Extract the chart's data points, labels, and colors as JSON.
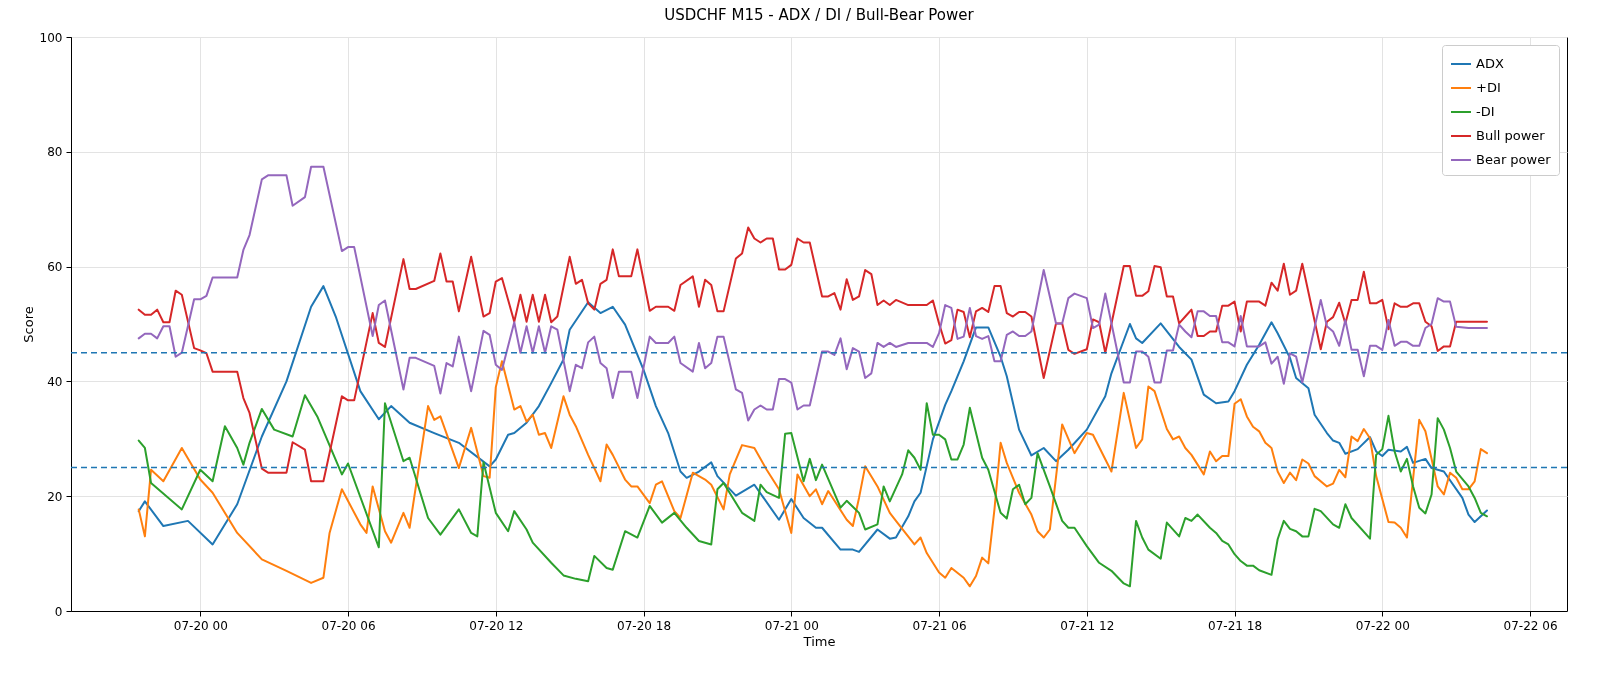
{
  "chart_data": {
    "type": "line",
    "title": "USDCHF M15 - ADX / DI / Bull-Bear Power",
    "xlabel": "Time",
    "ylabel": "Score",
    "xlim": [
      "--07-19T18:45",
      "--07-22T07:30"
    ],
    "xticks": [
      {
        "value": "--07-20T00:00",
        "label": "07-20 00"
      },
      {
        "value": "--07-20T06:00",
        "label": "07-20 06"
      },
      {
        "value": "--07-20T12:00",
        "label": "07-20 12"
      },
      {
        "value": "--07-20T18:00",
        "label": "07-20 18"
      },
      {
        "value": "--07-21T00:00",
        "label": "07-21 00"
      },
      {
        "value": "--07-21T06:00",
        "label": "07-21 06"
      },
      {
        "value": "--07-21T12:00",
        "label": "07-21 12"
      },
      {
        "value": "--07-21T18:00",
        "label": "07-21 18"
      },
      {
        "value": "--07-22T00:00",
        "label": "07-22 00"
      },
      {
        "value": "--07-22T06:00",
        "label": "07-22 06"
      }
    ],
    "ylim": [
      0,
      100
    ],
    "yticks": [
      0,
      20,
      40,
      60,
      80,
      100
    ],
    "grid": true,
    "legend": "top right",
    "line_style": "solid",
    "ref_lines": [
      {
        "axis": "y",
        "value": 45,
        "color": "#1f77b4",
        "line_style": "dashed"
      },
      {
        "axis": "y",
        "value": 25,
        "color": "#1f77b4",
        "line_style": "dashed"
      }
    ],
    "x": [
      "--07-19T21:30",
      "--07-19T21:45",
      "--07-19T22:00",
      "--07-19T22:15",
      "--07-19T22:30",
      "--07-19T22:45",
      "--07-19T23:00",
      "--07-19T23:15",
      "--07-19T23:45",
      "--07-20T00:00",
      "--07-20T00:15",
      "--07-20T00:30",
      "--07-20T01:30",
      "--07-20T01:45",
      "--07-20T02:00",
      "--07-20T02:30",
      "--07-20T02:45",
      "--07-20T03:30",
      "--07-20T03:45",
      "--07-20T04:15",
      "--07-20T04:30",
      "--07-20T05:00",
      "--07-20T05:45",
      "--07-20T06:00",
      "--07-20T06:15",
      "--07-20T07:00",
      "--07-20T07:15",
      "--07-20T07:30",
      "--07-20T08:15",
      "--07-20T08:30",
      "--07-20T08:45",
      "--07-20T09:30",
      "--07-20T09:45",
      "--07-20T10:00",
      "--07-20T10:15",
      "--07-20T10:30",
      "--07-20T11:00",
      "--07-20T11:30",
      "--07-20T11:45",
      "--07-20T12:00",
      "--07-20T12:15",
      "--07-20T12:45",
      "--07-20T13:00",
      "--07-20T13:15",
      "--07-20T13:30",
      "--07-20T13:45",
      "--07-20T14:00",
      "--07-20T14:15",
      "--07-20T14:30",
      "--07-20T15:00",
      "--07-20T15:15",
      "--07-20T15:30",
      "--07-20T15:45",
      "--07-20T16:00",
      "--07-20T16:15",
      "--07-20T16:30",
      "--07-20T16:45",
      "--07-20T17:00",
      "--07-20T17:30",
      "--07-20T17:45",
      "--07-20T18:15",
      "--07-20T18:30",
      "--07-20T19:00",
      "--07-20T19:15",
      "--07-20T19:30",
      "--07-20T20:00",
      "--07-20T20:15",
      "--07-20T20:30",
      "--07-20T20:45",
      "--07-20T21:00",
      "--07-20T21:15",
      "--07-20T21:45",
      "--07-20T22:00",
      "--07-20T22:15",
      "--07-20T22:30",
      "--07-20T22:45",
      "--07-20T23:00",
      "--07-20T23:15",
      "--07-20T23:30",
      "--07-20T23:45",
      "--07-21T00:00",
      "--07-21T00:15",
      "--07-21T00:30",
      "--07-21T00:45",
      "--07-21T01:15",
      "--07-21T01:30",
      "--07-21T01:45",
      "--07-21T02:00",
      "--07-21T02:15",
      "--07-21T02:30",
      "--07-21T02:45",
      "--07-21T03:00",
      "--07-21T03:15",
      "--07-21T03:30",
      "--07-21T03:45",
      "--07-21T04:00",
      "--07-21T04:15",
      "--07-21T04:45",
      "--07-21T05:30",
      "--07-21T05:45",
      "--07-21T06:00",
      "--07-21T06:15",
      "--07-21T06:30",
      "--07-21T06:45",
      "--07-21T07:00",
      "--07-21T07:15",
      "--07-21T07:30",
      "--07-21T07:45",
      "--07-21T08:00",
      "--07-21T08:15",
      "--07-21T08:30",
      "--07-21T08:45",
      "--07-21T09:00",
      "--07-21T09:15",
      "--07-21T09:30",
      "--07-21T09:45",
      "--07-21T10:15",
      "--07-21T10:45",
      "--07-21T11:00",
      "--07-21T11:15",
      "--07-21T11:30",
      "--07-21T12:00",
      "--07-21T12:15",
      "--07-21T12:30",
      "--07-21T12:45",
      "--07-21T13:30",
      "--07-21T13:45",
      "--07-21T14:00",
      "--07-21T14:15",
      "--07-21T14:30",
      "--07-21T14:45",
      "--07-21T15:00",
      "--07-21T15:15",
      "--07-21T15:30",
      "--07-21T15:45",
      "--07-21T16:00",
      "--07-21T16:15",
      "--07-21T16:30",
      "--07-21T16:45",
      "--07-21T17:00",
      "--07-21T17:15",
      "--07-21T17:30",
      "--07-21T17:45",
      "--07-21T18:00",
      "--07-21T18:15",
      "--07-21T18:30",
      "--07-21T19:00",
      "--07-21T19:15",
      "--07-21T19:30",
      "--07-21T19:45",
      "--07-21T20:00",
      "--07-21T20:15",
      "--07-21T20:30",
      "--07-21T20:45",
      "--07-21T21:30",
      "--07-21T21:45",
      "--07-21T22:00",
      "--07-21T22:15",
      "--07-21T22:30",
      "--07-21T22:45",
      "--07-21T23:00",
      "--07-21T23:15",
      "--07-21T23:30",
      "--07-21T23:45",
      "--07-22T00:00",
      "--07-22T00:15",
      "--07-22T00:30",
      "--07-22T00:45",
      "--07-22T01:00",
      "--07-22T01:15",
      "--07-22T01:30",
      "--07-22T01:45",
      "--07-22T02:00",
      "--07-22T02:15",
      "--07-22T02:30",
      "--07-22T02:45",
      "--07-22T03:00",
      "--07-22T03:30",
      "--07-22T04:15"
    ],
    "series": [
      {
        "name": "ADX",
        "color": "#1f77b4",
        "x": [
          "--07-19T21:30",
          "--07-19T21:45",
          "--07-19T22:30",
          "--07-19T23:30",
          "--07-20T00:30",
          "--07-20T01:30",
          "--07-20T02:30",
          "--07-20T03:30",
          "--07-20T04:30",
          "--07-20T05:00",
          "--07-20T05:30",
          "--07-20T06:30",
          "--07-20T07:15",
          "--07-20T07:45",
          "--07-20T08:30",
          "--07-20T09:30",
          "--07-20T10:30",
          "--07-20T11:45",
          "--07-20T12:00",
          "--07-20T12:30",
          "--07-20T12:45",
          "--07-20T13:15",
          "--07-20T13:45",
          "--07-20T14:15",
          "--07-20T14:45",
          "--07-20T15:00",
          "--07-20T15:45",
          "--07-20T16:15",
          "--07-20T16:45",
          "--07-20T17:15",
          "--07-20T18:00",
          "--07-20T18:30",
          "--07-20T19:00",
          "--07-20T19:30",
          "--07-20T19:45",
          "--07-20T20:15",
          "--07-20T20:45",
          "--07-20T21:00",
          "--07-20T21:45",
          "--07-20T22:30",
          "--07-20T23:30",
          "--07-21T00:00",
          "--07-21T00:30",
          "--07-21T01:00",
          "--07-21T01:15",
          "--07-21T02:00",
          "--07-21T02:30",
          "--07-21T02:45",
          "--07-21T03:30",
          "--07-21T04:00",
          "--07-21T04:15",
          "--07-21T04:45",
          "--07-21T05:00",
          "--07-21T05:15",
          "--07-21T05:45",
          "--07-21T06:15",
          "--07-21T06:30",
          "--07-21T07:00",
          "--07-21T07:30",
          "--07-21T08:00",
          "--07-21T08:30",
          "--07-21T08:45",
          "--07-21T09:15",
          "--07-21T09:45",
          "--07-21T10:15",
          "--07-21T10:45",
          "--07-21T11:15",
          "--07-21T12:00",
          "--07-21T12:45",
          "--07-21T13:00",
          "--07-21T13:45",
          "--07-21T14:00",
          "--07-21T14:15",
          "--07-21T15:00",
          "--07-21T15:45",
          "--07-21T16:15",
          "--07-21T16:45",
          "--07-21T17:15",
          "--07-21T17:45",
          "--07-21T18:00",
          "--07-21T18:30",
          "--07-21T19:00",
          "--07-21T19:30",
          "--07-21T19:45",
          "--07-21T20:15",
          "--07-21T20:30",
          "--07-21T21:00",
          "--07-21T21:15",
          "--07-21T21:45",
          "--07-21T22:00",
          "--07-21T22:15",
          "--07-21T22:30",
          "--07-21T23:00",
          "--07-21T23:30",
          "--07-21T23:45",
          "--07-22T00:00",
          "--07-22T00:15",
          "--07-22T00:45",
          "--07-22T01:00",
          "--07-22T01:15",
          "--07-22T01:45",
          "--07-22T02:00",
          "--07-22T02:30",
          "--07-22T03:15",
          "--07-22T03:30",
          "--07-22T03:45",
          "--07-22T04:15"
        ],
        "values": [
          17.4,
          19.1,
          14.8,
          15.7,
          11.6,
          18.6,
          30.4,
          40,
          53,
          56.6,
          51.3,
          38.3,
          33.4,
          35.7,
          32.8,
          31,
          29.3,
          25.2,
          26.4,
          30.7,
          31,
          32.8,
          35.7,
          39.7,
          43.8,
          49,
          53.8,
          51.9,
          53,
          49.9,
          42,
          35.7,
          31,
          24.3,
          23.2,
          24.3,
          25.9,
          23.5,
          20.1,
          22,
          15.9,
          19.5,
          16.2,
          14.5,
          14.5,
          10.7,
          10.7,
          10.3,
          14.2,
          12.6,
          12.8,
          16.5,
          19.1,
          20.6,
          29.9,
          35.9,
          38.3,
          43.5,
          49.4,
          49.4,
          44.3,
          40.9,
          31.6,
          27.1,
          28.4,
          26.1,
          28.1,
          31.6,
          37.4,
          41.4,
          50,
          47.5,
          46.7,
          50.1,
          46,
          43.8,
          37.7,
          36.2,
          36.5,
          38.3,
          42.9,
          46.4,
          50.3,
          48.4,
          44.1,
          40.6,
          38.8,
          34.2,
          31,
          29.7,
          29.3,
          27.4,
          28.2,
          30.3,
          27.8,
          27,
          28.1,
          27.8,
          28.6,
          25.8,
          26.5,
          24.9,
          24.3,
          19.7,
          16.8,
          15.5,
          17.5
        ]
      },
      {
        "name": "+DI",
        "color": "#ff7f0e",
        "x": [
          "--07-19T21:30",
          "--07-19T21:45",
          "--07-19T22:00",
          "--07-19T22:30",
          "--07-19T23:15",
          "--07-20T00:00",
          "--07-20T00:30",
          "--07-20T01:30",
          "--07-20T02:30",
          "--07-20T03:30",
          "--07-20T04:30",
          "--07-20T05:00",
          "--07-20T05:15",
          "--07-20T05:45",
          "--07-20T06:30",
          "--07-20T06:45",
          "--07-20T07:00",
          "--07-20T07:30",
          "--07-20T07:45",
          "--07-20T08:15",
          "--07-20T08:30",
          "--07-20T09:15",
          "--07-20T09:30",
          "--07-20T09:45",
          "--07-20T10:30",
          "--07-20T11:00",
          "--07-20T11:30",
          "--07-20T11:45",
          "--07-20T12:00",
          "--07-20T12:15",
          "--07-20T12:45",
          "--07-20T13:00",
          "--07-20T13:15",
          "--07-20T13:30",
          "--07-20T13:45",
          "--07-20T14:00",
          "--07-20T14:15",
          "--07-20T14:45",
          "--07-20T15:00",
          "--07-20T15:15",
          "--07-20T15:45",
          "--07-20T16:15",
          "--07-20T16:30",
          "--07-20T16:45",
          "--07-20T17:15",
          "--07-20T17:30",
          "--07-20T17:45",
          "--07-20T18:15",
          "--07-20T18:30",
          "--07-20T18:45",
          "--07-20T19:15",
          "--07-20T19:30",
          "--07-20T20:00",
          "--07-20T20:30",
          "--07-20T20:45",
          "--07-20T21:15",
          "--07-20T21:30",
          "--07-20T22:00",
          "--07-20T22:30",
          "--07-20T23:00",
          "--07-20T23:30",
          "--07-21T00:00",
          "--07-21T00:15",
          "--07-21T00:45",
          "--07-21T01:00",
          "--07-21T01:15",
          "--07-21T01:30",
          "--07-21T02:15",
          "--07-21T02:30",
          "--07-21T02:45",
          "--07-21T03:00",
          "--07-21T03:30",
          "--07-21T04:00",
          "--07-21T04:15",
          "--07-21T05:00",
          "--07-21T05:15",
          "--07-21T05:30",
          "--07-21T06:00",
          "--07-21T06:15",
          "--07-21T06:30",
          "--07-21T07:00",
          "--07-21T07:15",
          "--07-21T07:30",
          "--07-21T07:45",
          "--07-21T08:00",
          "--07-21T08:15",
          "--07-21T08:30",
          "--07-21T08:45",
          "--07-21T09:15",
          "--07-21T09:45",
          "--07-21T10:00",
          "--07-21T10:15",
          "--07-21T10:30",
          "--07-21T11:00",
          "--07-21T11:30",
          "--07-21T12:00",
          "--07-21T12:15",
          "--07-21T13:00",
          "--07-21T13:30",
          "--07-21T14:00",
          "--07-21T14:15",
          "--07-21T14:30",
          "--07-21T14:45",
          "--07-21T15:15",
          "--07-21T15:30",
          "--07-21T15:45",
          "--07-21T16:00",
          "--07-21T16:15",
          "--07-21T16:45",
          "--07-21T17:00",
          "--07-21T17:15",
          "--07-21T17:30",
          "--07-21T17:45",
          "--07-21T18:00",
          "--07-21T18:15",
          "--07-21T18:30",
          "--07-21T18:45",
          "--07-21T19:00",
          "--07-21T19:15",
          "--07-21T19:30",
          "--07-21T19:45",
          "--07-21T20:00",
          "--07-21T20:15",
          "--07-21T20:30",
          "--07-21T20:45",
          "--07-21T21:00",
          "--07-21T21:15",
          "--07-21T21:45",
          "--07-21T22:00",
          "--07-21T22:15",
          "--07-21T22:30",
          "--07-21T22:45",
          "--07-21T23:00",
          "--07-21T23:15",
          "--07-21T23:30",
          "--07-21T23:45",
          "--07-22T00:15",
          "--07-22T00:30",
          "--07-22T00:45",
          "--07-22T01:00",
          "--07-22T01:30",
          "--07-22T01:45",
          "--07-22T02:15",
          "--07-22T02:30",
          "--07-22T02:45",
          "--07-22T03:00",
          "--07-22T03:15",
          "--07-22T03:30",
          "--07-22T03:45",
          "--07-22T04:00",
          "--07-22T04:15"
        ],
        "values": [
          17.7,
          13,
          24.6,
          22.6,
          28.4,
          22.9,
          20.6,
          13.6,
          9,
          7,
          4.9,
          5.8,
          13.6,
          21.2,
          15.1,
          13.6,
          21.7,
          13.9,
          11.9,
          17.1,
          14.5,
          35.7,
          33.3,
          33.9,
          24.9,
          31.9,
          23.5,
          23.2,
          39,
          43.5,
          35.1,
          35.7,
          33,
          34.2,
          30.7,
          31,
          28.4,
          37.4,
          34.2,
          32.2,
          27.2,
          22.6,
          29,
          27.2,
          22.9,
          21.7,
          21.7,
          18.8,
          22,
          22.6,
          17.4,
          16.2,
          24.1,
          22.9,
          22,
          17.7,
          23.8,
          28.9,
          28.4,
          24.6,
          21.2,
          13.6,
          23.8,
          20,
          21.2,
          18.6,
          20.9,
          15.9,
          14.8,
          19.7,
          25.2,
          21.7,
          17.1,
          15.7,
          11.6,
          12.8,
          10.1,
          6.7,
          5.8,
          7.5,
          5.8,
          4.3,
          6.1,
          9.3,
          8.3,
          17.7,
          29.3,
          25.8,
          20.6,
          16.8,
          13.9,
          12.8,
          14.2,
          32.5,
          27.5,
          31,
          30.7,
          24.3,
          38,
          28.4,
          29.9,
          39.1,
          38.3,
          31.7,
          29.9,
          30.4,
          28.4,
          27.2,
          23.8,
          27.8,
          26.1,
          27,
          27,
          36.1,
          36.9,
          33.9,
          32.1,
          31.3,
          29.3,
          28.4,
          24.3,
          22.3,
          24.1,
          22.8,
          26.4,
          25.7,
          23.5,
          21.7,
          22.2,
          24.6,
          23.3,
          30.4,
          29.6,
          31.7,
          30.1,
          23.5,
          15.5,
          15.4,
          14.5,
          12.8,
          33.3,
          31.3,
          21.7,
          20.3,
          24.1,
          23.2,
          21.2,
          21.2,
          22.6,
          28.2,
          27.5
        ]
      },
      {
        "name": "-DI",
        "color": "#2ca02c",
        "x": [
          "--07-19T21:30",
          "--07-19T21:45",
          "--07-19T22:00",
          "--07-19T23:15",
          "--07-20T00:00",
          "--07-20T00:30",
          "--07-20T01:00",
          "--07-20T01:30",
          "--07-20T01:45",
          "--07-20T02:00",
          "--07-20T02:30",
          "--07-20T03:00",
          "--07-20T03:45",
          "--07-20T04:15",
          "--07-20T04:45",
          "--07-20T05:45",
          "--07-20T06:00",
          "--07-20T07:15",
          "--07-20T07:30",
          "--07-20T08:15",
          "--07-20T08:30",
          "--07-20T09:15",
          "--07-20T09:45",
          "--07-20T10:30",
          "--07-20T11:00",
          "--07-20T11:15",
          "--07-20T11:30",
          "--07-20T12:00",
          "--07-20T12:30",
          "--07-20T12:45",
          "--07-20T13:15",
          "--07-20T13:30",
          "--07-20T14:15",
          "--07-20T14:45",
          "--07-20T15:15",
          "--07-20T15:45",
          "--07-20T16:00",
          "--07-20T16:30",
          "--07-20T16:45",
          "--07-20T17:15",
          "--07-20T17:45",
          "--07-20T18:15",
          "--07-20T18:45",
          "--07-20T19:15",
          "--07-20T19:45",
          "--07-20T20:15",
          "--07-20T20:45",
          "--07-20T21:00",
          "--07-20T21:15",
          "--07-20T22:00",
          "--07-20T22:30",
          "--07-20T22:45",
          "--07-20T23:00",
          "--07-20T23:30",
          "--07-20T23:45",
          "--07-21T00:00",
          "--07-21T00:30",
          "--07-21T00:45",
          "--07-21T01:00",
          "--07-21T01:15",
          "--07-21T02:00",
          "--07-21T02:15",
          "--07-21T02:45",
          "--07-21T03:00",
          "--07-21T03:30",
          "--07-21T03:45",
          "--07-21T04:00",
          "--07-21T04:30",
          "--07-21T04:45",
          "--07-21T05:00",
          "--07-21T05:15",
          "--07-21T05:30",
          "--07-21T05:45",
          "--07-21T06:00",
          "--07-21T06:15",
          "--07-21T06:30",
          "--07-21T06:45",
          "--07-21T07:00",
          "--07-21T07:15",
          "--07-21T07:45",
          "--07-21T08:00",
          "--07-21T08:30",
          "--07-21T08:45",
          "--07-21T09:00",
          "--07-21T09:15",
          "--07-21T09:30",
          "--07-21T09:45",
          "--07-21T10:00",
          "--07-21T10:30",
          "--07-21T11:00",
          "--07-21T11:15",
          "--07-21T11:30",
          "--07-21T12:00",
          "--07-21T12:30",
          "--07-21T13:00",
          "--07-21T13:30",
          "--07-21T13:45",
          "--07-21T14:00",
          "--07-21T14:15",
          "--07-21T14:30",
          "--07-21T15:00",
          "--07-21T15:15",
          "--07-21T15:45",
          "--07-21T16:00",
          "--07-21T16:15",
          "--07-21T16:30",
          "--07-21T17:00",
          "--07-21T17:15",
          "--07-21T17:30",
          "--07-21T17:45",
          "--07-21T18:00",
          "--07-21T18:15",
          "--07-21T18:30",
          "--07-21T18:45",
          "--07-21T19:00",
          "--07-21T19:30",
          "--07-21T19:45",
          "--07-21T20:00",
          "--07-21T20:15",
          "--07-21T20:30",
          "--07-21T20:45",
          "--07-21T21:00",
          "--07-21T21:15",
          "--07-21T21:30",
          "--07-21T22:00",
          "--07-21T22:15",
          "--07-21T22:30",
          "--07-21T22:45",
          "--07-21T23:30",
          "--07-21T23:45",
          "--07-22T00:00",
          "--07-22T00:15",
          "--07-22T00:30",
          "--07-22T00:45",
          "--07-22T01:00",
          "--07-22T01:15",
          "--07-22T01:30",
          "--07-22T01:45",
          "--07-22T02:00",
          "--07-22T02:15",
          "--07-22T02:30",
          "--07-22T02:45",
          "--07-22T03:00",
          "--07-22T03:30",
          "--07-22T03:45",
          "--07-22T04:00",
          "--07-22T04:15"
        ],
        "values": [
          29.7,
          28.4,
          22.3,
          17.7,
          24.6,
          22.6,
          32.2,
          28.4,
          25.5,
          29.3,
          35.2,
          31.6,
          30.4,
          37.6,
          33.9,
          23.8,
          25.7,
          11.1,
          36.2,
          26.1,
          26.7,
          16.2,
          13.3,
          17.7,
          13.6,
          13,
          25.9,
          17.1,
          13.9,
          17.4,
          14.2,
          11.9,
          8.4,
          6.2,
          5.6,
          5.2,
          9.6,
          7.5,
          7.2,
          13.9,
          12.8,
          18.3,
          15.4,
          17.1,
          14.5,
          12.2,
          11.6,
          21.2,
          22.3,
          17.1,
          15.7,
          22,
          20.7,
          19.7,
          30.9,
          31,
          22.6,
          26.5,
          22.8,
          25.5,
          18,
          19.2,
          17.1,
          14.2,
          15.1,
          21.7,
          19.1,
          23.8,
          28,
          26.7,
          24.6,
          36.2,
          30.7,
          30.7,
          29.9,
          26.4,
          26.4,
          29,
          35.4,
          26.7,
          24.6,
          17.1,
          16.1,
          21.2,
          22,
          18.6,
          19.7,
          27.5,
          21.7,
          15.7,
          14.5,
          14.5,
          11.3,
          8.4,
          7,
          4.8,
          4.3,
          15.7,
          12.8,
          10.7,
          9.1,
          15.4,
          13,
          16.2,
          15.7,
          16.8,
          14.5,
          13.6,
          12.2,
          11.6,
          9.9,
          8.7,
          7.9,
          7.9,
          7.1,
          6.3,
          12.5,
          15.7,
          14.3,
          13.9,
          13,
          13,
          17.8,
          17.4,
          15.1,
          14.5,
          18.6,
          16.2,
          12.6,
          27.2,
          28.2,
          34,
          27.8,
          24.3,
          26.5,
          21.7,
          18,
          17,
          20.3,
          33.6,
          31.6,
          28.4,
          24.3,
          21.7,
          19.7,
          17.1,
          16.5
        ]
      },
      {
        "name": "Bull power",
        "color": "#d62728",
        "values": [
          52.5,
          51.6,
          51.6,
          52.5,
          50.3,
          50.3,
          55.8,
          55.1,
          45.8,
          45.4,
          44.9,
          41.7,
          41.7,
          37.1,
          34.5,
          24.8,
          24.1,
          24.1,
          29.4,
          28.1,
          22.6,
          22.6,
          37.4,
          36.7,
          36.7,
          51.9,
          46.7,
          46,
          61.3,
          56.1,
          56.1,
          57.5,
          62.3,
          57.4,
          57.4,
          52.2,
          61.7,
          51.3,
          51.9,
          57.4,
          58,
          50.4,
          55.1,
          50.4,
          55.1,
          50.4,
          55.1,
          50.3,
          51.3,
          61.7,
          57,
          57.7,
          53.6,
          52.5,
          57,
          57.7,
          63,
          58.3,
          58.3,
          63,
          52.3,
          53,
          53,
          52.3,
          56.8,
          58.3,
          53,
          57.7,
          56.8,
          52.2,
          52.2,
          61.4,
          62.3,
          66.8,
          64.9,
          64.2,
          64.9,
          64.9,
          59.5,
          59.5,
          60.3,
          64.9,
          64.2,
          64.2,
          54.8,
          54.8,
          55.4,
          52.5,
          57.8,
          54.2,
          54.8,
          59.4,
          58.7,
          53.3,
          54.1,
          53.3,
          54.2,
          53.3,
          53.3,
          54.1,
          50.1,
          46.6,
          47.2,
          52.5,
          52.1,
          47.7,
          52.2,
          52.8,
          52.1,
          56.6,
          56.6,
          51.9,
          51.3,
          52.1,
          52.1,
          51.3,
          40.6,
          50.1,
          50.1,
          45.5,
          44.8,
          45.6,
          50.8,
          50.3,
          45,
          60.1,
          60.1,
          54.9,
          54.9,
          55.7,
          60.1,
          59.9,
          54.8,
          54.8,
          50.1,
          51.3,
          52.5,
          47.9,
          47.9,
          48.7,
          48.7,
          53.2,
          53.2,
          53.9,
          48.7,
          53.9,
          53.9,
          53.2,
          57.2,
          55.8,
          60.5,
          55.1,
          55.8,
          60.5,
          45.6,
          50.4,
          51.2,
          53.7,
          50.1,
          54.2,
          54.2,
          59.1,
          53.6,
          53.6,
          54.2,
          49.1,
          53.6,
          53,
          53,
          53.6,
          53.6,
          50.4,
          49.6,
          45.3,
          46.1,
          46.1,
          50.4,
          50.4,
          50.4
        ]
      },
      {
        "name": "Bear power",
        "color": "#9467bd",
        "values": [
          47.5,
          48.3,
          48.3,
          47.5,
          49.6,
          49.6,
          44.3,
          45,
          54.3,
          54.3,
          54.9,
          58.1,
          58.1,
          62.9,
          65.5,
          75.2,
          75.9,
          75.9,
          70.6,
          72.1,
          77.4,
          77.4,
          62.7,
          63.4,
          63.4,
          47.9,
          53.3,
          54.1,
          38.6,
          44.1,
          44.1,
          42.7,
          37.9,
          43.2,
          42.6,
          47.8,
          38.3,
          48.8,
          48.1,
          42.9,
          42,
          50.3,
          45,
          49.6,
          45,
          49.6,
          45,
          49.6,
          49,
          38.3,
          42.9,
          42.3,
          46.8,
          47.8,
          43.2,
          42.3,
          37.1,
          41.7,
          41.7,
          37.1,
          47.8,
          46.7,
          46.7,
          47.8,
          43.2,
          41.7,
          46.7,
          42.3,
          43.2,
          47.8,
          47.8,
          38.6,
          38,
          33.2,
          35.1,
          35.8,
          35.1,
          35.1,
          40.4,
          40.4,
          39.8,
          35.1,
          35.8,
          35.8,
          45.2,
          45.2,
          44.6,
          47.5,
          42.1,
          45.8,
          45.2,
          40.6,
          41.4,
          46.7,
          46,
          46.7,
          46,
          46.7,
          46.7,
          46,
          48.4,
          53.3,
          52.8,
          47.4,
          47.8,
          52.8,
          47.9,
          47.4,
          47.9,
          43.5,
          43.5,
          48.1,
          48.7,
          47.9,
          47.9,
          48.7,
          59.4,
          50.1,
          50.1,
          54.5,
          55.3,
          54.5,
          49.3,
          49.9,
          55.3,
          39.8,
          39.8,
          45.2,
          45.2,
          44.3,
          39.8,
          39.8,
          45.4,
          45.4,
          49.9,
          48.7,
          47.7,
          52.2,
          52.2,
          51.4,
          51.4,
          46.8,
          46.8,
          46.1,
          51.4,
          46.1,
          46.1,
          46.8,
          43.1,
          44.3,
          39.6,
          44.9,
          44.3,
          39.8,
          54.2,
          49.6,
          48.7,
          46.2,
          50.7,
          45.5,
          45.5,
          40.9,
          46.2,
          46.2,
          45.5,
          50.7,
          46.2,
          46.9,
          46.9,
          46.2,
          46.2,
          49.3,
          50,
          54.5,
          53.9,
          53.9,
          49.5,
          49.3,
          49.3
        ]
      }
    ]
  }
}
